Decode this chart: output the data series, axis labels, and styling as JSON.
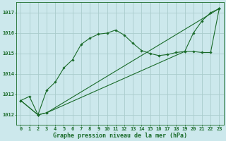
{
  "title": "Graphe pression niveau de la mer (hPa)",
  "background_color": "#cce8ec",
  "grid_color": "#aacccc",
  "line_color": "#1a6b2a",
  "xlim": [
    -0.5,
    23.5
  ],
  "ylim": [
    1011.5,
    1017.5
  ],
  "yticks": [
    1012,
    1013,
    1014,
    1015,
    1016,
    1017
  ],
  "xticks": [
    0,
    1,
    2,
    3,
    4,
    5,
    6,
    7,
    8,
    9,
    10,
    11,
    12,
    13,
    14,
    15,
    16,
    17,
    18,
    19,
    20,
    21,
    22,
    23
  ],
  "series1_x": [
    0,
    1,
    2,
    3,
    4,
    5,
    6,
    7,
    8,
    9,
    10,
    11,
    12,
    13,
    14,
    15,
    16,
    17,
    18,
    19,
    20,
    21,
    22,
    23
  ],
  "series1_y": [
    1012.7,
    1012.9,
    1012.0,
    1013.2,
    1013.6,
    1014.3,
    1014.7,
    1015.45,
    1015.75,
    1015.95,
    1016.0,
    1016.15,
    1015.9,
    1015.5,
    1015.15,
    1015.0,
    1014.9,
    1014.95,
    1015.05,
    1015.1,
    1016.0,
    1016.6,
    1017.0,
    1017.2
  ],
  "series2_x": [
    0,
    2,
    3,
    23
  ],
  "series2_y": [
    1012.7,
    1012.0,
    1012.1,
    1017.2
  ],
  "series3_x": [
    0,
    2,
    3,
    19,
    20,
    21,
    22,
    23
  ],
  "series3_y": [
    1012.7,
    1012.0,
    1012.1,
    1015.1,
    1015.1,
    1015.05,
    1015.05,
    1017.2
  ],
  "title_fontsize": 6.0,
  "tick_fontsize": 5.0
}
